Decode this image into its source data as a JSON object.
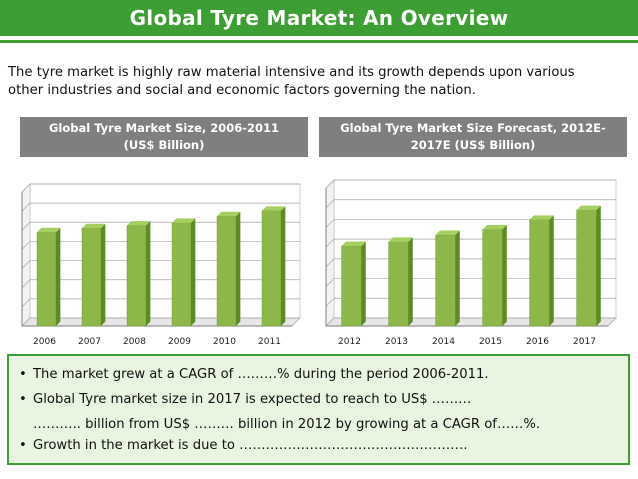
{
  "title": "Global Tyre Market: An Overview",
  "intro": {
    "line1": "The tyre market is highly raw material intensive and  its growth depends upon various",
    "line2": "other industries and social and economic factors governing the nation."
  },
  "colors": {
    "bar_front": "#8db849",
    "bar_side": "#5e8a24",
    "bar_top": "#a6cf62",
    "title_bg": "#3c9e33",
    "header_bg": "#7f7f7f"
  },
  "chart_data": [
    {
      "type": "bar",
      "title": "Global Tyre Market Size, 2006-2011 (US$ Billion)",
      "categories": [
        "2006",
        "2007",
        "2008",
        "2009",
        "2010",
        "2011"
      ],
      "values": [
        70,
        73,
        75,
        77,
        82,
        86
      ],
      "ylim": [
        0,
        100
      ],
      "grid": true
    },
    {
      "type": "bar",
      "title": "Global Tyre Market   Size Forecast, 2012E-2017E (US$ Billion)",
      "categories": [
        "2012",
        "2013",
        "2014",
        "2015",
        "2016",
        "2017"
      ],
      "values": [
        58,
        61,
        66,
        70,
        77,
        84
      ],
      "ylim": [
        0,
        100
      ],
      "grid": true
    }
  ],
  "bullets": {
    "b1": "The market grew at a CAGR of ………% during the period 2006-2011.",
    "b2": "Global Tyre market size in 2017 is expected to reach to US$ ………",
    "b2_cont": "……….. billion from US$ ……… billion in 2012 by growing at a CAGR of……%.",
    "b3": "Growth in the market is due to ……………………………………………."
  },
  "bullet_glyph": "•"
}
